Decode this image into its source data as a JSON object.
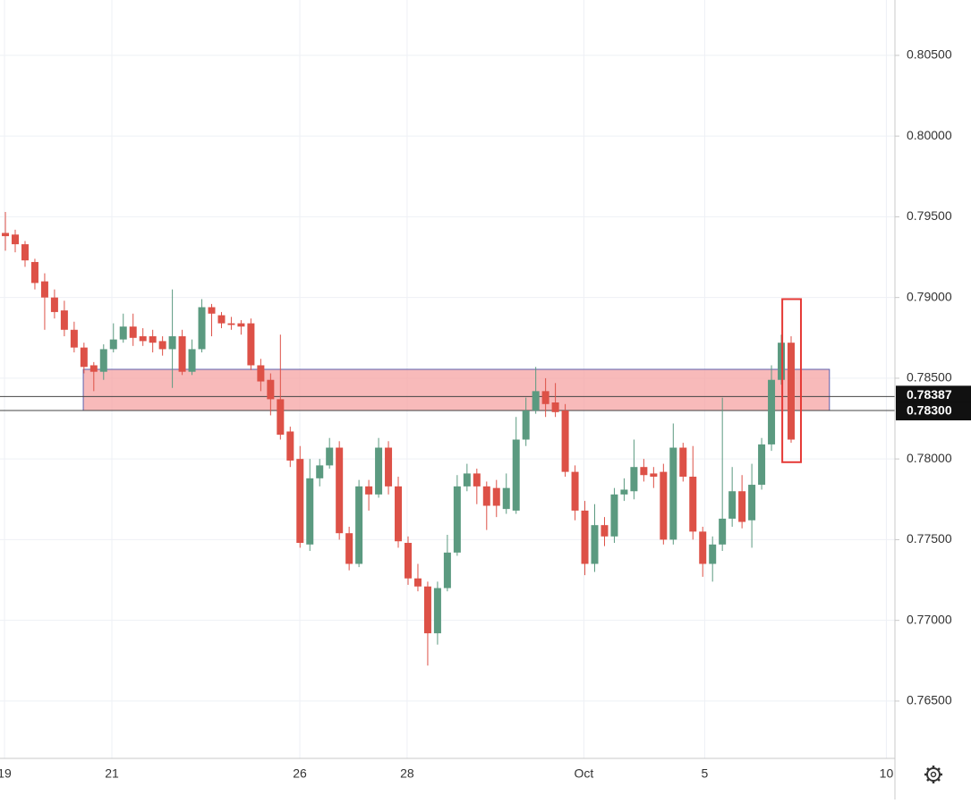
{
  "chart_data": {
    "type": "candlestick",
    "xlim": [
      -0.55,
      90.57
    ],
    "xticks": [
      {
        "value": -0.09,
        "label": "19"
      },
      {
        "value": 10.84,
        "label": "21"
      },
      {
        "value": 29.98,
        "label": "26"
      },
      {
        "value": 40.9,
        "label": "28"
      },
      {
        "value": 58.9,
        "label": "Oct"
      },
      {
        "value": 71.2,
        "label": "5"
      },
      {
        "value": 89.7,
        "label": "10"
      }
    ],
    "ylim": [
      0.76145,
      0.80843
    ],
    "yticks": [
      {
        "value": 0.765,
        "label": "0.76500"
      },
      {
        "value": 0.77,
        "label": "0.77000"
      },
      {
        "value": 0.775,
        "label": "0.77500"
      },
      {
        "value": 0.78,
        "label": "0.78000"
      },
      {
        "value": 0.785,
        "label": "0.78500"
      },
      {
        "value": 0.79,
        "label": "0.79000"
      },
      {
        "value": 0.795,
        "label": "0.79500"
      },
      {
        "value": 0.8,
        "label": "0.80000"
      },
      {
        "value": 0.805,
        "label": "0.80500"
      }
    ],
    "grid": true,
    "up_color": "#5b9a80",
    "down_color": "#dd5147",
    "open": [
      0.794,
      0.7939,
      0.7933,
      0.7922,
      0.791,
      0.79,
      0.7892,
      0.788,
      0.7869,
      0.7858,
      0.7854,
      0.7868,
      0.7874,
      0.7882,
      0.7876,
      0.7876,
      0.7873,
      0.7868,
      0.7876,
      0.7854,
      0.7868,
      0.7894,
      0.7889,
      0.7884,
      0.7884,
      0.7884,
      0.7858,
      0.7849,
      0.7837,
      0.7817,
      0.78,
      0.7747,
      0.7788,
      0.7796,
      0.7807,
      0.7754,
      0.7735,
      0.7783,
      0.7778,
      0.7807,
      0.7783,
      0.7748,
      0.7726,
      0.7721,
      0.7692,
      0.772,
      0.7742,
      0.7783,
      0.7791,
      0.7783,
      0.7782,
      0.7769,
      0.7768,
      0.7812,
      0.783,
      0.7842,
      0.7835,
      0.783,
      0.7792,
      0.7768,
      0.7735,
      0.7759,
      0.7752,
      0.7778,
      0.778,
      0.7795,
      0.7791,
      0.7792,
      0.775,
      0.7807,
      0.7789,
      0.7755,
      0.7735,
      0.7747,
      0.7763,
      0.778,
      0.7762,
      0.7784,
      0.7809,
      0.7849,
      0.7872
    ],
    "high": [
      0.7953,
      0.7942,
      0.7935,
      0.7924,
      0.7915,
      0.7905,
      0.7898,
      0.7885,
      0.7872,
      0.786,
      0.7871,
      0.7884,
      0.789,
      0.789,
      0.7881,
      0.788,
      0.7876,
      0.7905,
      0.788,
      0.7874,
      0.7899,
      0.7896,
      0.7891,
      0.7888,
      0.7886,
      0.7887,
      0.7862,
      0.7853,
      0.7877,
      0.782,
      0.7808,
      0.78,
      0.78,
      0.7813,
      0.7811,
      0.7758,
      0.7787,
      0.7787,
      0.7813,
      0.7811,
      0.7789,
      0.7752,
      0.7735,
      0.7724,
      0.7724,
      0.7753,
      0.779,
      0.7797,
      0.7794,
      0.7786,
      0.7787,
      0.7791,
      0.7826,
      0.7838,
      0.7857,
      0.785,
      0.7847,
      0.7834,
      0.7796,
      0.7774,
      0.7772,
      0.7764,
      0.7782,
      0.7788,
      0.7812,
      0.78,
      0.7795,
      0.7797,
      0.7822,
      0.781,
      0.7808,
      0.7758,
      0.7752,
      0.7838,
      0.7795,
      0.779,
      0.7797,
      0.7813,
      0.7858,
      0.7877,
      0.7876
    ],
    "low": [
      0.7929,
      0.7928,
      0.7919,
      0.7905,
      0.788,
      0.7887,
      0.7876,
      0.7866,
      0.7853,
      0.7842,
      0.7849,
      0.7866,
      0.7872,
      0.787,
      0.787,
      0.7866,
      0.7864,
      0.7844,
      0.7852,
      0.7852,
      0.7866,
      0.7876,
      0.7881,
      0.788,
      0.7877,
      0.7855,
      0.7842,
      0.7827,
      0.7812,
      0.7795,
      0.7745,
      0.7743,
      0.7783,
      0.7794,
      0.775,
      0.7731,
      0.7733,
      0.7768,
      0.7776,
      0.7778,
      0.7745,
      0.7722,
      0.7718,
      0.7672,
      0.7685,
      0.7718,
      0.774,
      0.778,
      0.7772,
      0.7756,
      0.7764,
      0.7766,
      0.7766,
      0.7808,
      0.7828,
      0.7826,
      0.7826,
      0.7789,
      0.7762,
      0.7728,
      0.773,
      0.7746,
      0.7748,
      0.7774,
      0.7775,
      0.7786,
      0.7782,
      0.7747,
      0.7747,
      0.7786,
      0.775,
      0.7727,
      0.7724,
      0.7743,
      0.7758,
      0.7757,
      0.7745,
      0.7781,
      0.7805,
      0.7846,
      0.781
    ],
    "close": [
      0.7938,
      0.7933,
      0.7923,
      0.7909,
      0.79,
      0.7891,
      0.788,
      0.7869,
      0.7857,
      0.7854,
      0.7868,
      0.7874,
      0.7882,
      0.7875,
      0.7873,
      0.7872,
      0.7868,
      0.7876,
      0.7854,
      0.7868,
      0.7894,
      0.789,
      0.7884,
      0.7883,
      0.7882,
      0.7858,
      0.7848,
      0.7837,
      0.7815,
      0.7799,
      0.7748,
      0.7788,
      0.7796,
      0.7807,
      0.7754,
      0.7735,
      0.7783,
      0.7778,
      0.7807,
      0.7783,
      0.7749,
      0.7726,
      0.7721,
      0.7692,
      0.772,
      0.7742,
      0.7783,
      0.7791,
      0.7783,
      0.7771,
      0.7771,
      0.7782,
      0.7812,
      0.783,
      0.7842,
      0.7834,
      0.7829,
      0.7792,
      0.7768,
      0.7735,
      0.7759,
      0.7752,
      0.7778,
      0.7781,
      0.7795,
      0.779,
      0.7789,
      0.775,
      0.7807,
      0.7789,
      0.7755,
      0.7735,
      0.7747,
      0.7763,
      0.778,
      0.7761,
      0.7784,
      0.7809,
      0.7849,
      0.7872,
      0.7812
    ],
    "levels": [
      {
        "value": 0.78387,
        "label": "0.78387"
      },
      {
        "value": 0.783,
        "label": "0.78300"
      }
    ],
    "zone": {
      "x": [
        7.93,
        83.9
      ],
      "y": [
        0.783,
        0.78555
      ],
      "color": "#f5a3a3",
      "border": "#5c62b0"
    },
    "highlight": {
      "x": [
        79.1,
        81.0
      ],
      "y": [
        0.7798,
        0.7899
      ],
      "color": "#e53935"
    }
  }
}
